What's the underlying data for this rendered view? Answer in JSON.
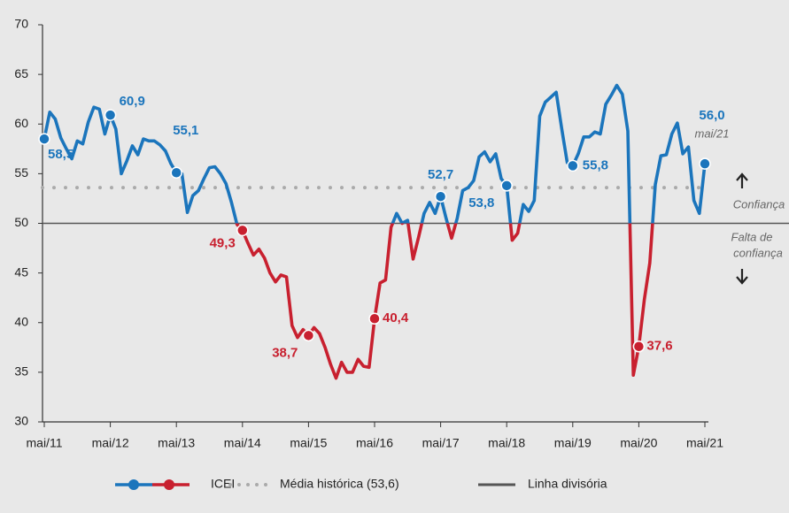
{
  "chart_data": {
    "type": "line",
    "categories": [
      "mai/11",
      null,
      null,
      null,
      null,
      null,
      null,
      null,
      null,
      null,
      null,
      null,
      "mai/12",
      null,
      null,
      null,
      null,
      null,
      null,
      null,
      null,
      null,
      null,
      null,
      "mai/13",
      null,
      null,
      null,
      null,
      null,
      null,
      null,
      null,
      null,
      null,
      null,
      "mai/14",
      null,
      null,
      null,
      null,
      null,
      null,
      null,
      null,
      null,
      null,
      null,
      "mai/15",
      null,
      null,
      null,
      null,
      null,
      null,
      null,
      null,
      null,
      null,
      null,
      "mai/16",
      null,
      null,
      null,
      null,
      null,
      null,
      null,
      null,
      null,
      null,
      null,
      "mai/17",
      null,
      null,
      null,
      null,
      null,
      null,
      null,
      null,
      null,
      null,
      null,
      "mai/18",
      null,
      null,
      null,
      null,
      null,
      null,
      null,
      null,
      null,
      null,
      null,
      "mai/19",
      null,
      null,
      null,
      null,
      null,
      null,
      null,
      null,
      null,
      null,
      null,
      "mai/20",
      null,
      null,
      null,
      null,
      null,
      null,
      null,
      null,
      null,
      null,
      null,
      "mai/21"
    ],
    "series": [
      {
        "name": "ICEI",
        "color": "#1b75bc",
        "color_below": "#c8202f",
        "values": [
          58.5,
          61.2,
          60.5,
          58.6,
          57.5,
          56.5,
          58.3,
          58.0,
          60.2,
          61.7,
          61.5,
          59.0,
          60.9,
          59.5,
          55.0,
          56.3,
          57.8,
          56.9,
          58.5,
          58.3,
          58.3,
          57.9,
          57.3,
          56.0,
          55.1,
          55.0,
          51.1,
          52.8,
          53.3,
          54.5,
          55.6,
          55.7,
          55.0,
          54.0,
          52.1,
          49.9,
          49.3,
          48.0,
          46.8,
          47.4,
          46.5,
          45.0,
          44.1,
          44.8,
          44.6,
          39.7,
          38.5,
          39.3,
          38.7,
          39.5,
          38.9,
          37.5,
          35.8,
          34.4,
          36.0,
          35.0,
          35.0,
          36.3,
          35.6,
          35.5,
          40.4,
          44.0,
          44.3,
          49.6,
          51.0,
          50.0,
          50.3,
          46.4,
          48.6,
          51.0,
          52.1,
          51.0,
          52.7,
          50.5,
          48.5,
          50.5,
          53.3,
          53.6,
          54.3,
          56.7,
          57.2,
          56.2,
          57.0,
          54.5,
          53.8,
          48.3,
          49.0,
          51.9,
          51.2,
          52.3,
          60.8,
          62.2,
          62.7,
          63.2,
          59.5,
          56.1,
          55.8,
          57.0,
          58.7,
          58.7,
          59.2,
          59.0,
          62.0,
          62.9,
          63.9,
          63.0,
          59.3,
          34.7,
          37.6,
          42.3,
          46.0,
          53.9,
          56.8,
          56.9,
          59.0,
          60.1,
          57.0,
          57.7,
          52.3,
          51.0,
          56.0
        ],
        "value_labels": [
          "58,5",
          null,
          null,
          null,
          null,
          null,
          null,
          null,
          null,
          null,
          null,
          null,
          "60,9",
          null,
          null,
          null,
          null,
          null,
          null,
          null,
          null,
          null,
          null,
          null,
          "55,1",
          null,
          null,
          null,
          null,
          null,
          null,
          null,
          null,
          null,
          null,
          null,
          "49,3",
          null,
          null,
          null,
          null,
          null,
          null,
          null,
          null,
          null,
          null,
          null,
          "38,7",
          null,
          null,
          null,
          null,
          null,
          null,
          null,
          null,
          null,
          null,
          null,
          "40,4",
          null,
          null,
          null,
          null,
          null,
          null,
          null,
          null,
          null,
          null,
          null,
          "52,7",
          null,
          null,
          null,
          null,
          null,
          null,
          null,
          null,
          null,
          null,
          null,
          "53,8",
          null,
          null,
          null,
          null,
          null,
          null,
          null,
          null,
          null,
          null,
          null,
          "55,8",
          null,
          null,
          null,
          null,
          null,
          null,
          null,
          null,
          null,
          null,
          null,
          "37,6",
          null,
          null,
          null,
          null,
          null,
          null,
          null,
          null,
          null,
          null,
          null,
          "56,0"
        ]
      }
    ],
    "last_point_note": "mai/21",
    "reference_lines": [
      {
        "name": "Média histórica (53,6)",
        "value": 53.6,
        "style": "dotted",
        "color": "#aaaaaa"
      },
      {
        "name": "Linha divisória",
        "value": 50,
        "style": "solid",
        "color": "#555555"
      }
    ],
    "zone_labels": {
      "above": [
        "Confiança"
      ],
      "below": [
        "Falta de",
        "confiança"
      ]
    },
    "ylim": [
      30,
      70
    ],
    "yticks": [
      30,
      35,
      40,
      45,
      50,
      55,
      60,
      65,
      70
    ],
    "grid": false,
    "legend": "bottom"
  }
}
